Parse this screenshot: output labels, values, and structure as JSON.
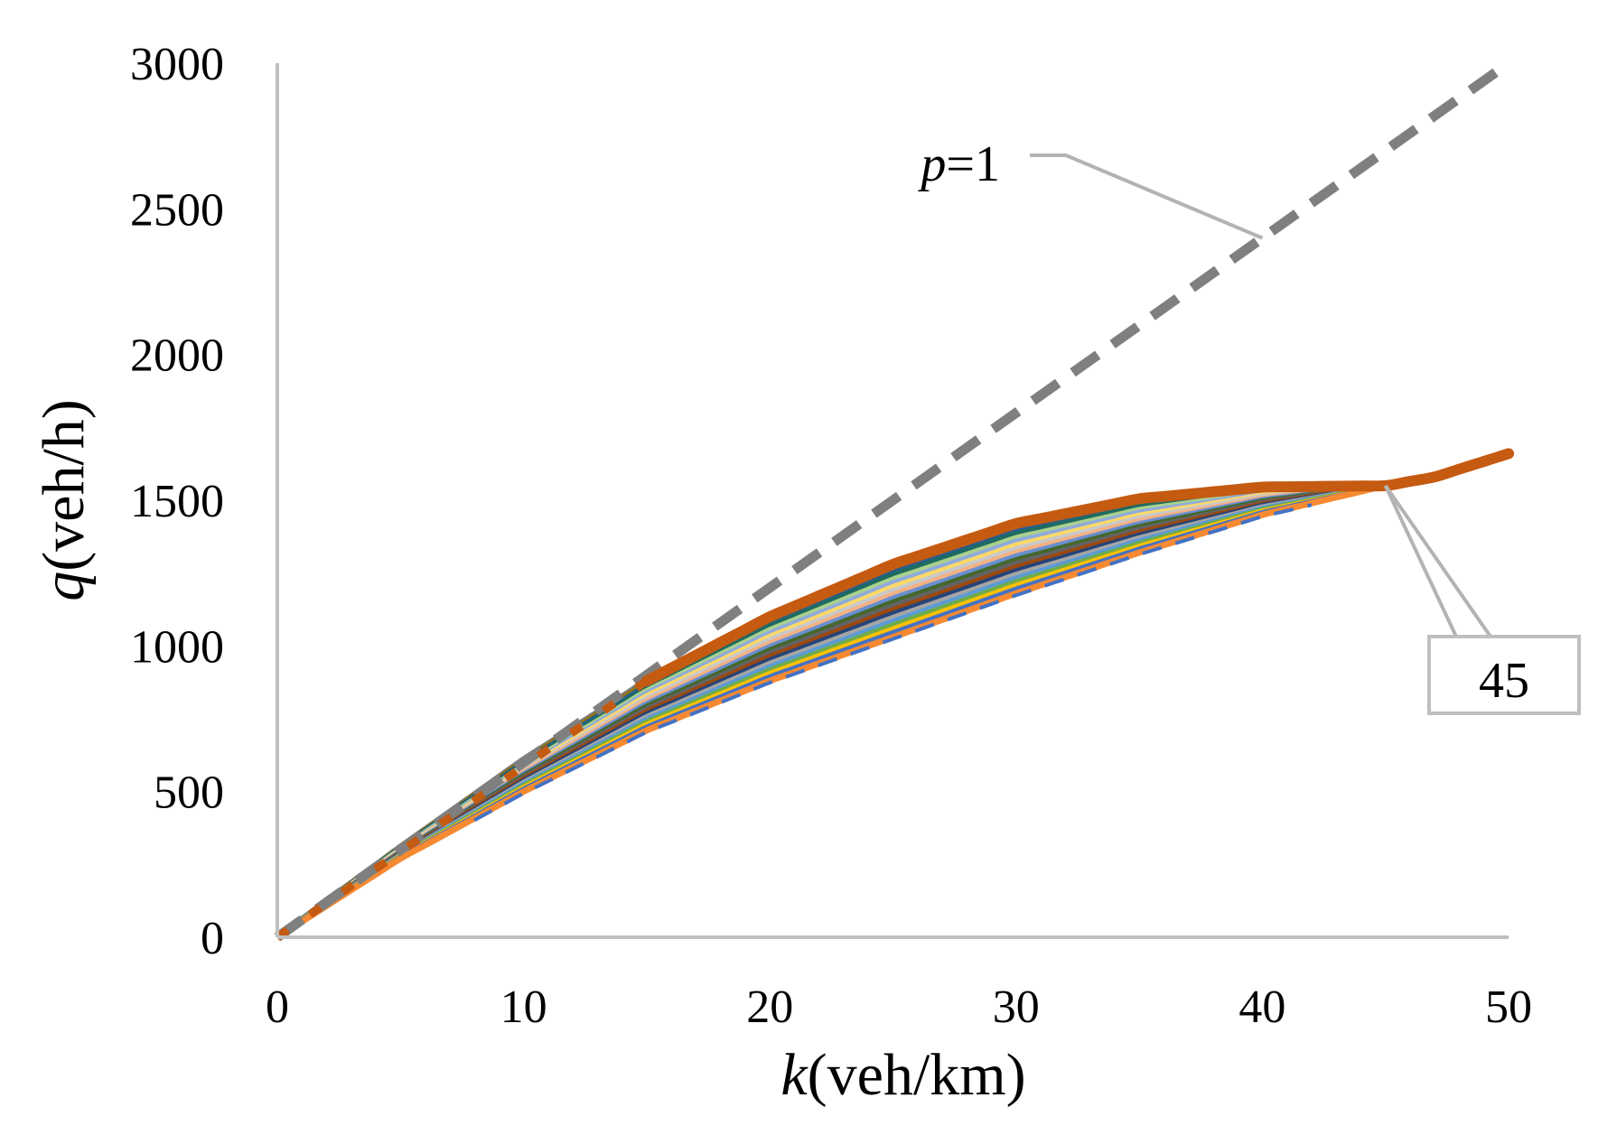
{
  "chart_data": {
    "type": "line",
    "title": "",
    "xlabel": {
      "italic": "k",
      "rest": "(veh/km)"
    },
    "ylabel": {
      "italic": "q",
      "rest": "(veh/h)"
    },
    "xlim": [
      0,
      50
    ],
    "ylim": [
      0,
      3000
    ],
    "xticks": [
      "0",
      "10",
      "20",
      "30",
      "40",
      "50"
    ],
    "yticks": [
      "0",
      "500",
      "1000",
      "1500",
      "2000",
      "2500",
      "3000"
    ],
    "grid": false,
    "legend": "none",
    "reference_line": {
      "name": "p=1",
      "color": "#7f7f7f",
      "style": "dashed",
      "x": [
        0,
        50
      ],
      "y": [
        0,
        3000
      ]
    },
    "band": {
      "description_label": "family of curves for p between 0 and 1",
      "x": [
        0,
        5,
        10,
        15,
        20,
        25,
        30,
        35,
        40,
        45,
        47,
        50
      ],
      "upper_y": [
        0,
        310,
        610,
        880,
        1100,
        1280,
        1420,
        1505,
        1545,
        1550,
        1580,
        1660
      ],
      "lower_y": [
        0,
        270,
        500,
        710,
        880,
        1030,
        1180,
        1320,
        1450,
        1550,
        1580,
        1660
      ],
      "series_colors": [
        "#f58a32",
        "#4472c4",
        "#ffc000",
        "#70ad47",
        "#5b9bd5",
        "#a5a5a5",
        "#264478",
        "#9e480e",
        "#636363",
        "#43682b",
        "#698ed0",
        "#f4b183",
        "#c9c9c9",
        "#ffd966",
        "#8faadc",
        "#a9d18e",
        "#1f6b5f",
        "#255e91",
        "#997300",
        "#7b7b7b"
      ]
    },
    "highlight_series": {
      "name": "upper envelope",
      "color": "#c55a11",
      "x": [
        0,
        5,
        10,
        15,
        20,
        25,
        30,
        35,
        40,
        45,
        47,
        50
      ],
      "y": [
        0,
        310,
        610,
        880,
        1100,
        1280,
        1420,
        1505,
        1545,
        1550,
        1580,
        1660
      ]
    },
    "annotations": [
      {
        "label_italic": "p",
        "label_rest": "=1",
        "target_x": 40,
        "target_y": 2400,
        "placement": "upper-middle"
      },
      {
        "label": "45",
        "target_x": 45,
        "target_y": 1550,
        "placement": "right",
        "boxed": true
      }
    ],
    "colors": {
      "axis": "#bfbfbf",
      "leader": "#b3b3b3",
      "reference": "#7f7f7f",
      "envelope": "#c55a11"
    }
  }
}
